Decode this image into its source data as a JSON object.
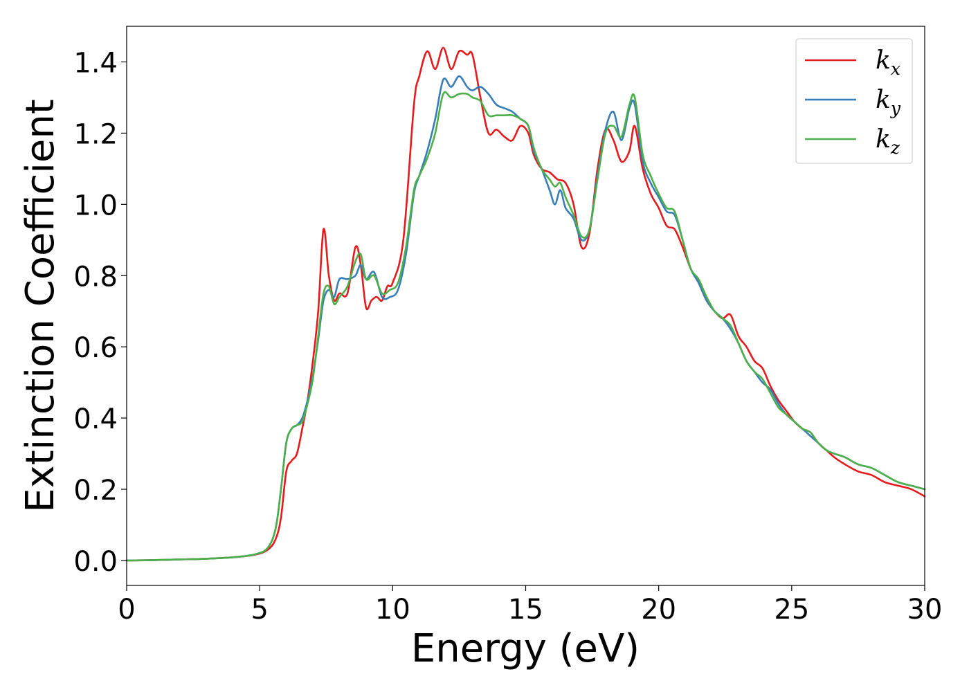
{
  "chart_data": {
    "type": "line",
    "title": "",
    "xlabel": "Energy (eV)",
    "ylabel": "Extinction Coefficient",
    "xlim": [
      0,
      30
    ],
    "ylim": [
      -0.07,
      1.5
    ],
    "xticks": [
      0,
      5,
      10,
      15,
      20,
      25,
      30
    ],
    "xtick_labels": [
      "0",
      "5",
      "10",
      "15",
      "20",
      "25",
      "30"
    ],
    "yticks": [
      0.0,
      0.2,
      0.4,
      0.6,
      0.8,
      1.0,
      1.2,
      1.4
    ],
    "ytick_labels": [
      "0.0",
      "0.2",
      "0.4",
      "0.6",
      "0.8",
      "1.0",
      "1.2",
      "1.4"
    ],
    "grid": false,
    "legend_position": "top-right",
    "series": [
      {
        "name": "k_x",
        "legend_base": "k",
        "legend_sub": "x",
        "color": "#e41a1c",
        "points": [
          [
            0,
            0
          ],
          [
            1,
            0.001
          ],
          [
            2,
            0.003
          ],
          [
            3,
            0.005
          ],
          [
            4,
            0.009
          ],
          [
            4.8,
            0.016
          ],
          [
            5.3,
            0.03
          ],
          [
            5.6,
            0.06
          ],
          [
            5.8,
            0.12
          ],
          [
            6.0,
            0.25
          ],
          [
            6.2,
            0.28
          ],
          [
            6.4,
            0.3
          ],
          [
            6.6,
            0.37
          ],
          [
            6.8,
            0.45
          ],
          [
            7.0,
            0.56
          ],
          [
            7.2,
            0.7
          ],
          [
            7.4,
            0.93
          ],
          [
            7.6,
            0.8
          ],
          [
            7.8,
            0.73
          ],
          [
            8.0,
            0.75
          ],
          [
            8.3,
            0.75
          ],
          [
            8.6,
            0.88
          ],
          [
            8.8,
            0.83
          ],
          [
            9.0,
            0.71
          ],
          [
            9.2,
            0.73
          ],
          [
            9.4,
            0.74
          ],
          [
            9.6,
            0.73
          ],
          [
            9.8,
            0.77
          ],
          [
            10.0,
            0.78
          ],
          [
            10.4,
            0.9
          ],
          [
            10.8,
            1.28
          ],
          [
            11.0,
            1.36
          ],
          [
            11.3,
            1.43
          ],
          [
            11.6,
            1.38
          ],
          [
            11.9,
            1.44
          ],
          [
            12.2,
            1.38
          ],
          [
            12.5,
            1.43
          ],
          [
            12.8,
            1.42
          ],
          [
            13.0,
            1.42
          ],
          [
            13.3,
            1.3
          ],
          [
            13.6,
            1.2
          ],
          [
            13.9,
            1.21
          ],
          [
            14.2,
            1.19
          ],
          [
            14.5,
            1.18
          ],
          [
            14.8,
            1.22
          ],
          [
            15.1,
            1.2
          ],
          [
            15.3,
            1.14
          ],
          [
            15.6,
            1.1
          ],
          [
            15.9,
            1.09
          ],
          [
            16.2,
            1.07
          ],
          [
            16.5,
            1.06
          ],
          [
            16.8,
            1.0
          ],
          [
            17.1,
            0.88
          ],
          [
            17.4,
            0.92
          ],
          [
            17.7,
            1.1
          ],
          [
            18.0,
            1.21
          ],
          [
            18.3,
            1.18
          ],
          [
            18.6,
            1.12
          ],
          [
            18.9,
            1.15
          ],
          [
            19.1,
            1.22
          ],
          [
            19.4,
            1.1
          ],
          [
            19.7,
            1.03
          ],
          [
            20.0,
            0.99
          ],
          [
            20.3,
            0.94
          ],
          [
            20.6,
            0.93
          ],
          [
            20.9,
            0.88
          ],
          [
            21.2,
            0.82
          ],
          [
            21.5,
            0.78
          ],
          [
            21.8,
            0.73
          ],
          [
            22.1,
            0.7
          ],
          [
            22.4,
            0.68
          ],
          [
            22.7,
            0.69
          ],
          [
            23.0,
            0.63
          ],
          [
            23.3,
            0.6
          ],
          [
            23.6,
            0.56
          ],
          [
            23.9,
            0.54
          ],
          [
            24.2,
            0.49
          ],
          [
            24.5,
            0.45
          ],
          [
            24.8,
            0.42
          ],
          [
            25.1,
            0.39
          ],
          [
            25.4,
            0.37
          ],
          [
            25.7,
            0.36
          ],
          [
            26.0,
            0.33
          ],
          [
            26.3,
            0.31
          ],
          [
            26.6,
            0.29
          ],
          [
            27.0,
            0.27
          ],
          [
            27.5,
            0.25
          ],
          [
            28.0,
            0.24
          ],
          [
            28.5,
            0.22
          ],
          [
            29.0,
            0.21
          ],
          [
            29.5,
            0.2
          ],
          [
            30.0,
            0.18
          ]
        ]
      },
      {
        "name": "k_y",
        "legend_base": "k",
        "legend_sub": "y",
        "color": "#377eb8",
        "points": [
          [
            0,
            0
          ],
          [
            1,
            0.001
          ],
          [
            2,
            0.003
          ],
          [
            3,
            0.005
          ],
          [
            4,
            0.009
          ],
          [
            4.8,
            0.017
          ],
          [
            5.3,
            0.035
          ],
          [
            5.6,
            0.09
          ],
          [
            5.8,
            0.2
          ],
          [
            6.0,
            0.33
          ],
          [
            6.2,
            0.37
          ],
          [
            6.4,
            0.38
          ],
          [
            6.6,
            0.4
          ],
          [
            6.8,
            0.45
          ],
          [
            7.0,
            0.52
          ],
          [
            7.2,
            0.62
          ],
          [
            7.4,
            0.73
          ],
          [
            7.6,
            0.76
          ],
          [
            7.8,
            0.74
          ],
          [
            8.0,
            0.79
          ],
          [
            8.3,
            0.79
          ],
          [
            8.6,
            0.8
          ],
          [
            8.8,
            0.83
          ],
          [
            9.0,
            0.79
          ],
          [
            9.3,
            0.81
          ],
          [
            9.6,
            0.74
          ],
          [
            9.9,
            0.74
          ],
          [
            10.2,
            0.76
          ],
          [
            10.5,
            0.86
          ],
          [
            10.8,
            1.03
          ],
          [
            11.0,
            1.08
          ],
          [
            11.3,
            1.15
          ],
          [
            11.6,
            1.24
          ],
          [
            11.9,
            1.35
          ],
          [
            12.2,
            1.33
          ],
          [
            12.5,
            1.36
          ],
          [
            12.8,
            1.33
          ],
          [
            13.0,
            1.32
          ],
          [
            13.3,
            1.33
          ],
          [
            13.6,
            1.31
          ],
          [
            13.9,
            1.28
          ],
          [
            14.2,
            1.27
          ],
          [
            14.5,
            1.26
          ],
          [
            14.8,
            1.24
          ],
          [
            15.1,
            1.22
          ],
          [
            15.3,
            1.15
          ],
          [
            15.6,
            1.1
          ],
          [
            15.9,
            1.04
          ],
          [
            16.1,
            1.0
          ],
          [
            16.3,
            1.04
          ],
          [
            16.5,
            0.99
          ],
          [
            16.8,
            0.96
          ],
          [
            17.1,
            0.9
          ],
          [
            17.4,
            0.93
          ],
          [
            17.7,
            1.08
          ],
          [
            18.0,
            1.21
          ],
          [
            18.3,
            1.26
          ],
          [
            18.6,
            1.18
          ],
          [
            18.9,
            1.27
          ],
          [
            19.1,
            1.28
          ],
          [
            19.4,
            1.12
          ],
          [
            19.7,
            1.06
          ],
          [
            20.0,
            1.02
          ],
          [
            20.3,
            0.98
          ],
          [
            20.6,
            0.97
          ],
          [
            20.9,
            0.9
          ],
          [
            21.2,
            0.82
          ],
          [
            21.5,
            0.78
          ],
          [
            21.8,
            0.73
          ],
          [
            22.1,
            0.7
          ],
          [
            22.4,
            0.68
          ],
          [
            22.7,
            0.65
          ],
          [
            23.0,
            0.61
          ],
          [
            23.3,
            0.56
          ],
          [
            23.6,
            0.53
          ],
          [
            23.9,
            0.5
          ],
          [
            24.2,
            0.48
          ],
          [
            24.5,
            0.44
          ],
          [
            24.8,
            0.41
          ],
          [
            25.1,
            0.39
          ],
          [
            25.4,
            0.37
          ],
          [
            25.7,
            0.35
          ],
          [
            26.0,
            0.33
          ],
          [
            26.3,
            0.31
          ],
          [
            26.6,
            0.3
          ],
          [
            27.0,
            0.29
          ],
          [
            27.5,
            0.27
          ],
          [
            28.0,
            0.26
          ],
          [
            28.5,
            0.24
          ],
          [
            29.0,
            0.22
          ],
          [
            29.5,
            0.21
          ],
          [
            30.0,
            0.2
          ]
        ]
      },
      {
        "name": "k_z",
        "legend_base": "k",
        "legend_sub": "z",
        "color": "#4daf4a",
        "points": [
          [
            0,
            0
          ],
          [
            1,
            0.001
          ],
          [
            2,
            0.003
          ],
          [
            3,
            0.005
          ],
          [
            4,
            0.009
          ],
          [
            4.8,
            0.017
          ],
          [
            5.3,
            0.035
          ],
          [
            5.6,
            0.09
          ],
          [
            5.8,
            0.2
          ],
          [
            6.0,
            0.33
          ],
          [
            6.2,
            0.37
          ],
          [
            6.4,
            0.38
          ],
          [
            6.6,
            0.39
          ],
          [
            6.8,
            0.44
          ],
          [
            7.0,
            0.51
          ],
          [
            7.2,
            0.63
          ],
          [
            7.4,
            0.75
          ],
          [
            7.6,
            0.77
          ],
          [
            7.8,
            0.72
          ],
          [
            8.0,
            0.74
          ],
          [
            8.3,
            0.77
          ],
          [
            8.6,
            0.84
          ],
          [
            8.8,
            0.86
          ],
          [
            9.0,
            0.79
          ],
          [
            9.3,
            0.8
          ],
          [
            9.6,
            0.75
          ],
          [
            9.9,
            0.76
          ],
          [
            10.2,
            0.78
          ],
          [
            10.5,
            0.88
          ],
          [
            10.8,
            1.04
          ],
          [
            11.0,
            1.08
          ],
          [
            11.3,
            1.13
          ],
          [
            11.6,
            1.2
          ],
          [
            11.9,
            1.31
          ],
          [
            12.2,
            1.3
          ],
          [
            12.5,
            1.31
          ],
          [
            12.8,
            1.31
          ],
          [
            13.0,
            1.3
          ],
          [
            13.3,
            1.29
          ],
          [
            13.6,
            1.25
          ],
          [
            13.9,
            1.25
          ],
          [
            14.2,
            1.25
          ],
          [
            14.5,
            1.25
          ],
          [
            14.8,
            1.24
          ],
          [
            15.1,
            1.22
          ],
          [
            15.3,
            1.16
          ],
          [
            15.6,
            1.1
          ],
          [
            15.9,
            1.07
          ],
          [
            16.1,
            1.05
          ],
          [
            16.3,
            1.06
          ],
          [
            16.5,
            1.02
          ],
          [
            16.8,
            0.97
          ],
          [
            17.1,
            0.91
          ],
          [
            17.4,
            0.93
          ],
          [
            17.7,
            1.07
          ],
          [
            18.0,
            1.2
          ],
          [
            18.3,
            1.22
          ],
          [
            18.6,
            1.19
          ],
          [
            18.9,
            1.28
          ],
          [
            19.1,
            1.3
          ],
          [
            19.4,
            1.14
          ],
          [
            19.7,
            1.08
          ],
          [
            20.0,
            1.03
          ],
          [
            20.3,
            0.99
          ],
          [
            20.6,
            0.98
          ],
          [
            20.9,
            0.9
          ],
          [
            21.2,
            0.82
          ],
          [
            21.5,
            0.79
          ],
          [
            21.8,
            0.74
          ],
          [
            22.1,
            0.7
          ],
          [
            22.4,
            0.68
          ],
          [
            22.7,
            0.66
          ],
          [
            23.0,
            0.61
          ],
          [
            23.3,
            0.56
          ],
          [
            23.6,
            0.53
          ],
          [
            23.9,
            0.51
          ],
          [
            24.2,
            0.47
          ],
          [
            24.5,
            0.43
          ],
          [
            24.8,
            0.41
          ],
          [
            25.1,
            0.39
          ],
          [
            25.4,
            0.37
          ],
          [
            25.7,
            0.36
          ],
          [
            26.0,
            0.33
          ],
          [
            26.3,
            0.31
          ],
          [
            26.6,
            0.3
          ],
          [
            27.0,
            0.29
          ],
          [
            27.5,
            0.27
          ],
          [
            28.0,
            0.26
          ],
          [
            28.5,
            0.24
          ],
          [
            29.0,
            0.22
          ],
          [
            29.5,
            0.21
          ],
          [
            30.0,
            0.2
          ]
        ]
      }
    ]
  }
}
